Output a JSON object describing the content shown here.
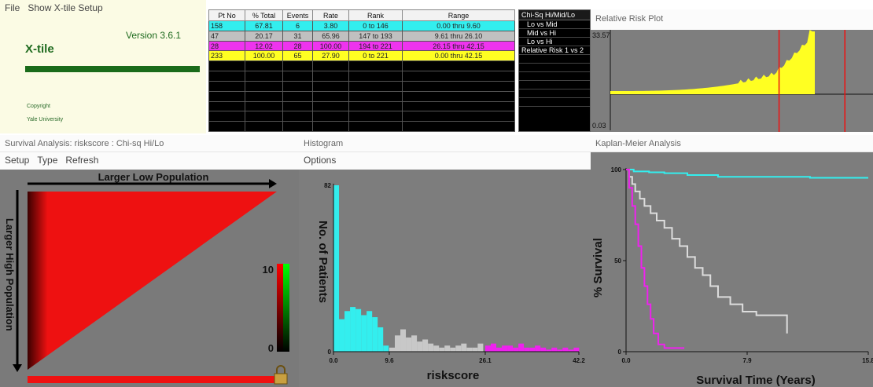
{
  "app": {
    "menu": [
      "File",
      "Show X-tile Setup"
    ],
    "version": "Version 3.6.1",
    "title": "X-tile",
    "copyright": "Copyright",
    "university": "Yale University"
  },
  "table": {
    "headers": [
      "Pt No",
      "% Total",
      "Events",
      "Rate",
      "Rank",
      "Range"
    ],
    "rows": [
      {
        "style": "cyan",
        "cells": [
          "158",
          "67.81",
          "6",
          "3.80",
          "0 to 146",
          "0.00 thru 9.60"
        ]
      },
      {
        "style": "gray",
        "cells": [
          "47",
          "20.17",
          "31",
          "65.96",
          "147 to 193",
          "9.61 thru 26.10"
        ]
      },
      {
        "style": "mag",
        "cells": [
          "28",
          "12.02",
          "28",
          "100.00",
          "194 to 221",
          "26.15 thru 42.15"
        ]
      },
      {
        "style": "yel",
        "cells": [
          "233",
          "100.00",
          "65",
          "27.90",
          "0 to 221",
          "0.00 thru 42.15"
        ]
      }
    ]
  },
  "chi_panel": {
    "header": "Chi-Sq Hi/Mid/Lo",
    "items": [
      "Lo vs Mid",
      "Mid vs Hi",
      "Lo vs Hi",
      "Relative Risk 1 vs 2"
    ]
  },
  "relative_risk": {
    "title": "Relative Risk Plot",
    "ymax_label": "33.57",
    "ymin_label": "0.03"
  },
  "survival": {
    "title": "Survival Analysis: riskscore : Chi-sq Hi/Lo",
    "menu": [
      "Setup",
      "Type",
      "Refresh"
    ],
    "top_label": "Larger Low Population",
    "side_label": "Larger High Population",
    "scale_max": "10",
    "scale_min": "0"
  },
  "histogram": {
    "title": "Histogram",
    "menu": [
      "Options"
    ],
    "ylabel": "No. of Patients",
    "xlabel": "riskscore"
  },
  "km": {
    "title": "Kaplan-Meier Analysis",
    "ylabel": "% Survival",
    "xlabel": "Survival Time (Years)"
  },
  "chart_data": [
    {
      "type": "bar",
      "title": "Histogram",
      "xlabel": "riskscore",
      "ylabel": "No. of Patients",
      "xlim": [
        0.0,
        42.2
      ],
      "ylim": [
        0,
        82
      ],
      "x_ticks": [
        "0.0",
        "9.6",
        "26.1",
        "42.2"
      ],
      "y_ticks": [
        "0",
        "82"
      ],
      "bin_width": 0.95,
      "bins": [
        {
          "x": 0.0,
          "v": 82,
          "group": "lo"
        },
        {
          "x": 0.95,
          "v": 16,
          "group": "lo"
        },
        {
          "x": 1.9,
          "v": 20,
          "group": "lo"
        },
        {
          "x": 2.85,
          "v": 22,
          "group": "lo"
        },
        {
          "x": 3.8,
          "v": 21,
          "group": "lo"
        },
        {
          "x": 4.75,
          "v": 18,
          "group": "lo"
        },
        {
          "x": 5.7,
          "v": 20,
          "group": "lo"
        },
        {
          "x": 6.65,
          "v": 17,
          "group": "lo"
        },
        {
          "x": 7.6,
          "v": 12,
          "group": "lo"
        },
        {
          "x": 8.55,
          "v": 3,
          "group": "lo"
        },
        {
          "x": 9.6,
          "v": 2,
          "group": "mid"
        },
        {
          "x": 10.55,
          "v": 8,
          "group": "mid"
        },
        {
          "x": 11.5,
          "v": 11,
          "group": "mid"
        },
        {
          "x": 12.45,
          "v": 7,
          "group": "mid"
        },
        {
          "x": 13.4,
          "v": 8,
          "group": "mid"
        },
        {
          "x": 14.35,
          "v": 5,
          "group": "mid"
        },
        {
          "x": 15.3,
          "v": 6,
          "group": "mid"
        },
        {
          "x": 16.25,
          "v": 4,
          "group": "mid"
        },
        {
          "x": 17.2,
          "v": 3,
          "group": "mid"
        },
        {
          "x": 18.15,
          "v": 2,
          "group": "mid"
        },
        {
          "x": 19.1,
          "v": 3,
          "group": "mid"
        },
        {
          "x": 20.05,
          "v": 2,
          "group": "mid"
        },
        {
          "x": 21.0,
          "v": 3,
          "group": "mid"
        },
        {
          "x": 21.95,
          "v": 4,
          "group": "mid"
        },
        {
          "x": 22.9,
          "v": 2,
          "group": "mid"
        },
        {
          "x": 23.85,
          "v": 2,
          "group": "mid"
        },
        {
          "x": 24.8,
          "v": 4,
          "group": "mid"
        },
        {
          "x": 26.1,
          "v": 3,
          "group": "hi"
        },
        {
          "x": 27.05,
          "v": 4,
          "group": "hi"
        },
        {
          "x": 28.0,
          "v": 2,
          "group": "hi"
        },
        {
          "x": 28.95,
          "v": 3,
          "group": "hi"
        },
        {
          "x": 29.9,
          "v": 3,
          "group": "hi"
        },
        {
          "x": 30.85,
          "v": 2,
          "group": "hi"
        },
        {
          "x": 31.8,
          "v": 4,
          "group": "hi"
        },
        {
          "x": 32.75,
          "v": 2,
          "group": "hi"
        },
        {
          "x": 33.7,
          "v": 2,
          "group": "hi"
        },
        {
          "x": 34.65,
          "v": 3,
          "group": "hi"
        },
        {
          "x": 35.6,
          "v": 2,
          "group": "hi"
        },
        {
          "x": 36.55,
          "v": 1,
          "group": "hi"
        },
        {
          "x": 37.5,
          "v": 2,
          "group": "hi"
        },
        {
          "x": 38.45,
          "v": 1,
          "group": "hi"
        },
        {
          "x": 39.4,
          "v": 2,
          "group": "hi"
        },
        {
          "x": 40.35,
          "v": 1,
          "group": "hi"
        },
        {
          "x": 41.3,
          "v": 2,
          "group": "hi"
        }
      ],
      "colors": {
        "lo": "#33eeee",
        "mid": "#c8c8c8",
        "hi": "#ee22ee"
      }
    },
    {
      "type": "line",
      "title": "Kaplan-Meier Analysis",
      "xlabel": "Survival Time (Years)",
      "ylabel": "% Survival",
      "xlim": [
        0.0,
        15.8
      ],
      "ylim": [
        0,
        100
      ],
      "x_ticks": [
        "0.0",
        "7.9",
        "15.8"
      ],
      "y_ticks": [
        "0",
        "50",
        "100"
      ],
      "series": [
        {
          "color": "#33eeee",
          "points": [
            [
              0,
              100
            ],
            [
              0.5,
              99
            ],
            [
              1.5,
              98.5
            ],
            [
              2.5,
              98
            ],
            [
              4,
              97
            ],
            [
              6,
              96
            ],
            [
              9,
              96
            ],
            [
              12,
              95.5
            ],
            [
              15.8,
              95.5
            ]
          ]
        },
        {
          "color": "#dddddd",
          "points": [
            [
              0,
              100
            ],
            [
              0.2,
              96
            ],
            [
              0.4,
              92
            ],
            [
              0.6,
              88
            ],
            [
              0.9,
              84
            ],
            [
              1.2,
              80
            ],
            [
              1.6,
              76
            ],
            [
              2,
              72
            ],
            [
              2.5,
              68
            ],
            [
              3,
              62
            ],
            [
              3.5,
              58
            ],
            [
              4,
              52
            ],
            [
              4.5,
              46
            ],
            [
              5,
              42
            ],
            [
              5.5,
              36
            ],
            [
              6,
              30
            ],
            [
              6.8,
              26
            ],
            [
              7.6,
              22
            ],
            [
              8.5,
              20
            ],
            [
              10.5,
              20
            ],
            [
              10.5,
              10
            ]
          ]
        },
        {
          "color": "#ee22ee",
          "points": [
            [
              0,
              100
            ],
            [
              0.2,
              90
            ],
            [
              0.4,
              80
            ],
            [
              0.6,
              70
            ],
            [
              0.8,
              58
            ],
            [
              1.0,
              46
            ],
            [
              1.2,
              36
            ],
            [
              1.4,
              26
            ],
            [
              1.6,
              18
            ],
            [
              1.8,
              10
            ],
            [
              2.1,
              4
            ],
            [
              2.5,
              2
            ],
            [
              3.8,
              2
            ]
          ]
        }
      ]
    },
    {
      "type": "area",
      "title": "Relative Risk Plot",
      "ylim": [
        0.03,
        33.57
      ],
      "y_ticks": [
        "0.03",
        "33.57"
      ],
      "cutpoints_fraction": [
        0.73,
        0.95
      ]
    }
  ]
}
